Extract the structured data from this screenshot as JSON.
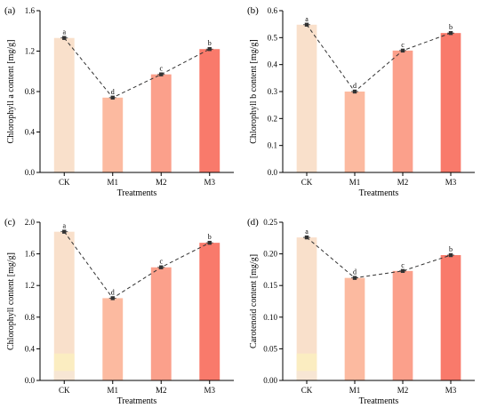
{
  "chart_data": [
    {
      "type": "bar",
      "panel_label": "(a)",
      "categories": [
        "CK",
        "M1",
        "M2",
        "M3"
      ],
      "values": [
        1.33,
        0.74,
        0.97,
        1.22
      ],
      "letters": [
        "a",
        "d",
        "c",
        "b"
      ],
      "xlabel": "Treatments",
      "ylabel": "Chlorophyll a content [mg/g]",
      "ylim": [
        0,
        1.6
      ],
      "yticks": [
        0.0,
        0.4,
        0.8,
        1.2,
        1.6
      ],
      "ytick_labels": [
        "0.0",
        "0.4",
        "0.8",
        "1.2",
        "1.6"
      ],
      "overlay": "dashed line connecting bar means",
      "grid": false
    },
    {
      "type": "bar",
      "panel_label": "(b)",
      "categories": [
        "CK",
        "M1",
        "M2",
        "M3"
      ],
      "values": [
        0.548,
        0.3,
        0.452,
        0.517
      ],
      "letters": [
        "a",
        "d",
        "c",
        "b"
      ],
      "xlabel": "Treatments",
      "ylabel": "Chlorophyll b content [mg/g]",
      "ylim": [
        0,
        0.6
      ],
      "yticks": [
        0.0,
        0.1,
        0.2,
        0.3,
        0.4,
        0.5,
        0.6
      ],
      "ytick_labels": [
        "0.0",
        "0.1",
        "0.2",
        "0.3",
        "0.4",
        "0.5",
        "0.6"
      ],
      "overlay": "dashed line connecting bar means",
      "grid": false
    },
    {
      "type": "bar",
      "panel_label": "(c)",
      "categories": [
        "CK",
        "M1",
        "M2",
        "M3"
      ],
      "values": [
        1.88,
        1.04,
        1.43,
        1.74
      ],
      "letters": [
        "a",
        "d",
        "c",
        "b"
      ],
      "xlabel": "Treatments",
      "ylabel": "Chlorophyll content [mg/g]",
      "ylim": [
        0,
        2.0
      ],
      "yticks": [
        0.0,
        0.4,
        0.8,
        1.2,
        1.6,
        2.0
      ],
      "ytick_labels": [
        "0.0",
        "0.4",
        "0.8",
        "1.2",
        "1.6",
        "2.0"
      ],
      "overlay": "dashed line connecting bar means",
      "grid": false
    },
    {
      "type": "bar",
      "panel_label": "(d)",
      "categories": [
        "CK",
        "M1",
        "M2",
        "M3"
      ],
      "values": [
        0.226,
        0.162,
        0.173,
        0.198
      ],
      "letters": [
        "a",
        "d",
        "c",
        "b"
      ],
      "xlabel": "Treatments",
      "ylabel": "Carotenoid content [mg/g]",
      "ylim": [
        0,
        0.25
      ],
      "yticks": [
        0.0,
        0.05,
        0.1,
        0.15,
        0.2,
        0.25
      ],
      "ytick_labels": [
        "0.00",
        "0.05",
        "0.10",
        "0.15",
        "0.20",
        "0.25"
      ],
      "overlay": "dashed line connecting bar means",
      "grid": false
    }
  ],
  "colors": {
    "bars": [
      "#f9e0cb",
      "#fcbaa0",
      "#fba08b",
      "#f97a6b"
    ],
    "ck_base_band": "#fbefc0",
    "line": "#333333",
    "marker": "#333333",
    "axis": "#000000"
  }
}
